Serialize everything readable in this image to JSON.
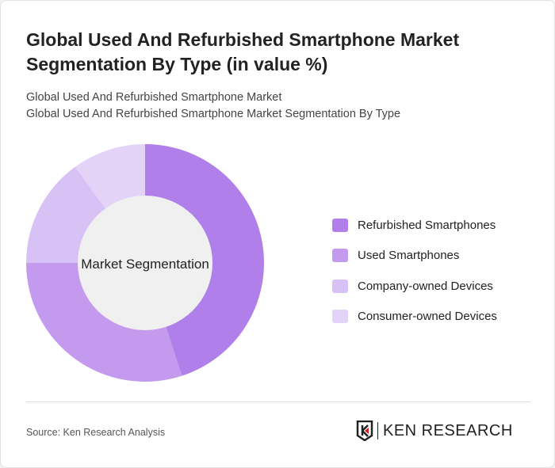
{
  "header": {
    "title": "Global Used And Refurbished Smartphone Market Segmentation By Type (in value %)",
    "subtitle1": "Global Used And Refurbished Smartphone Market",
    "subtitle2": "Global Used And Refurbished Smartphone Market Segmentation By Type"
  },
  "chart_data": {
    "type": "pie",
    "variant": "donut",
    "center_label": "Market Segmentation",
    "categories": [
      "Refurbished Smartphones",
      "Used Smartphones",
      "Company-owned Devices",
      "Consumer-owned Devices"
    ],
    "values": [
      45,
      30,
      15,
      10
    ],
    "unit": "%",
    "colors": [
      "#b07fea",
      "#c49aee",
      "#d8c2f5",
      "#e3d3f7"
    ],
    "legend_position": "right"
  },
  "footer": {
    "source": "Source: Ken Research Analysis",
    "logo_text": "KEN RESEARCH"
  }
}
